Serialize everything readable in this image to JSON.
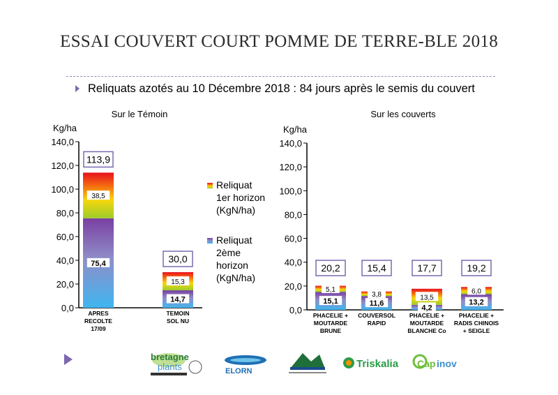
{
  "slide": {
    "title": "ESSAI COUVERT COURT POMME DE TERRE-BLE 2018",
    "subtitle": "Reliquats azotés au 10 Décembre 2018 : 84 jours après le semis du couvert"
  },
  "legend": {
    "horizon1": [
      "Reliquat",
      "1er horizon",
      "(KgN/ha)"
    ],
    "horizon2": [
      "Reliquat",
      "2ème",
      "horizon",
      "(KgN/ha)"
    ]
  },
  "colors": {
    "horizon1_top": "#e8101c",
    "horizon1_mid": "#f7d70e",
    "horizon1_bottom": "#9ccc2a",
    "horizon2_top": "#7a3fa2",
    "horizon2_bottom": "#3fb5f0",
    "total_box_border": "#7b68b0"
  },
  "logos": [
    "bretagne plants",
    "ELORN",
    "Triskalia",
    "Capinov"
  ],
  "chart_data": [
    {
      "type": "bar",
      "stacked": true,
      "title": "Sur le Témoin",
      "ylabel": "Kg/ha",
      "ylim": [
        0,
        140
      ],
      "yticks": [
        "0,0",
        "20,0",
        "40,0",
        "60,0",
        "80,0",
        "100,0",
        "120,0",
        "140,0"
      ],
      "categories": [
        [
          "APRES",
          "RECOLTE",
          "17/09"
        ],
        [
          "TEMOIN",
          "SOL NU"
        ]
      ],
      "series": [
        {
          "name": "Reliquat 2ème horizon (KgN/ha)",
          "values": [
            75.4,
            14.7
          ],
          "labels": [
            "75,4",
            "14,7"
          ]
        },
        {
          "name": "Reliquat 1er horizon (KgN/ha)",
          "values": [
            38.5,
            15.3
          ],
          "labels": [
            "38,5",
            "15,3"
          ]
        }
      ],
      "totals": [
        "113,9",
        "30,0"
      ]
    },
    {
      "type": "bar",
      "stacked": true,
      "title": "Sur les couverts",
      "ylabel": "Kg/ha",
      "ylim": [
        0,
        140
      ],
      "yticks": [
        "0,0",
        "20,0",
        "40,0",
        "60,0",
        "80,0",
        "100,0",
        "120,0",
        "140,0"
      ],
      "categories": [
        [
          "PHACELIE +",
          "MOUTARDE",
          "BRUNE"
        ],
        [
          "COUVERSOL",
          "RAPID"
        ],
        [
          "PHACELIE +",
          "MOUTARDE",
          "BLANCHE Co"
        ],
        [
          "PHACELIE +",
          "RADIS CHINOIS",
          "+ SEIGLE"
        ]
      ],
      "series": [
        {
          "name": "Reliquat 2ème horizon (KgN/ha)",
          "values": [
            15.1,
            11.6,
            4.2,
            13.2
          ],
          "labels": [
            "15,1",
            "11,6",
            "4,2",
            "13,2"
          ]
        },
        {
          "name": "Reliquat 1er horizon (KgN/ha)",
          "values": [
            5.1,
            3.8,
            13.5,
            6.0
          ],
          "labels": [
            "5,1",
            "3,8",
            "13,5",
            "6,0"
          ]
        }
      ],
      "totals": [
        "20,2",
        "15,4",
        "17,7",
        "19,2"
      ]
    }
  ]
}
